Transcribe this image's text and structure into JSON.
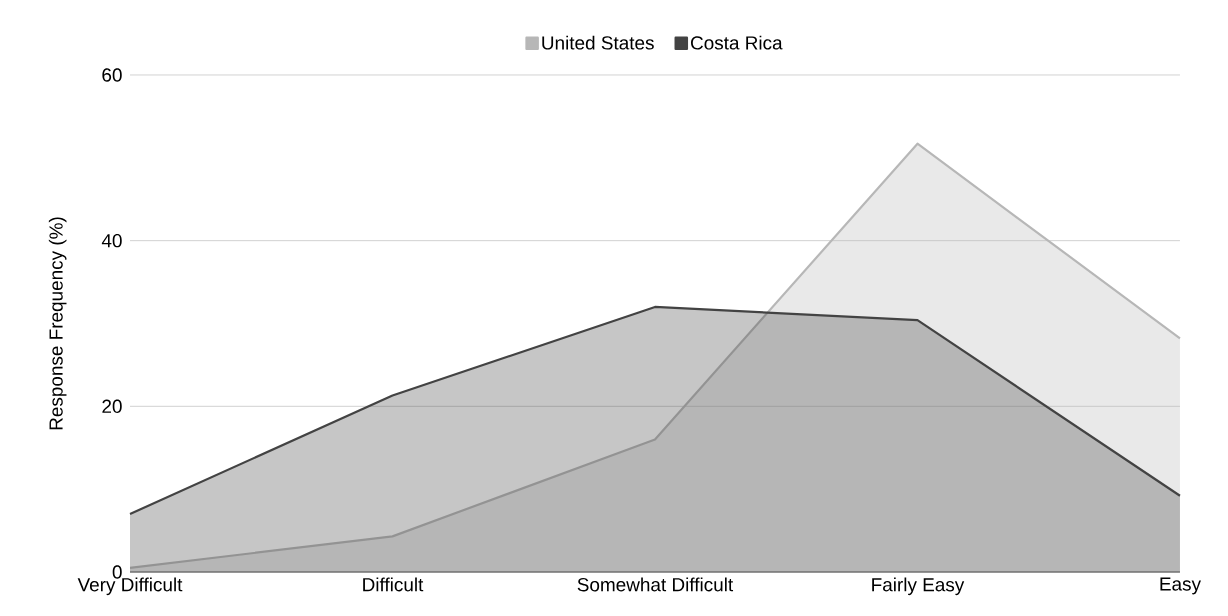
{
  "chart_data": {
    "type": "area",
    "ylabel": "Response Frequency (%)",
    "categories": [
      "Very Difficult",
      "Difficult",
      "Somewhat Difficult",
      "Fairly Easy",
      "Easy"
    ],
    "series": [
      {
        "name": "United States",
        "color": "#b7b7b7",
        "values": [
          0.5,
          4.3,
          16,
          51.7,
          28.2
        ]
      },
      {
        "name": "Costa Rica",
        "color": "#434343",
        "values": [
          7.0,
          21.3,
          32.0,
          30.4,
          9.2
        ]
      }
    ],
    "ylim": [
      0,
      60
    ],
    "yticks": [
      0,
      20,
      40,
      60
    ],
    "grid": "y",
    "legend": "top"
  }
}
